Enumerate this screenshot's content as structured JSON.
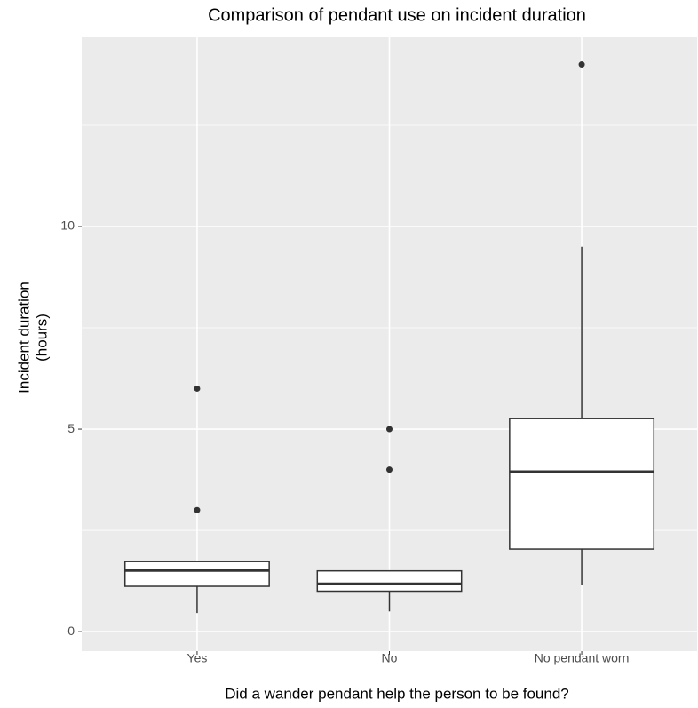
{
  "chart_data": {
    "type": "box",
    "title": "Comparison of pendant use on incident duration",
    "xlabel": "Did a wander pendant help the person to be found?",
    "ylabel": [
      "Incident duration",
      "(hours)"
    ],
    "categories": [
      "Yes",
      "No",
      "No pendant worn"
    ],
    "boxes": [
      {
        "min": 0.46,
        "q1": 1.12,
        "median": 1.51,
        "q3": 1.73,
        "max": 1.73,
        "outliers": [
          6,
          3
        ]
      },
      {
        "min": 0.5,
        "q1": 1.0,
        "median": 1.18,
        "q3": 1.5,
        "max": 1.5,
        "outliers": [
          5,
          4
        ]
      },
      {
        "min": 1.16,
        "q1": 2.04,
        "median": 3.95,
        "q3": 5.26,
        "max": 9.5,
        "outliers": [
          14
        ]
      }
    ],
    "ylim": [
      -0.48,
      14.67
    ],
    "yticks": [
      0,
      5,
      10
    ],
    "minor_yticks": [
      2.5,
      7.5,
      12.5
    ],
    "grid": true,
    "color": "#ffffff",
    "line_color": "#333333"
  }
}
